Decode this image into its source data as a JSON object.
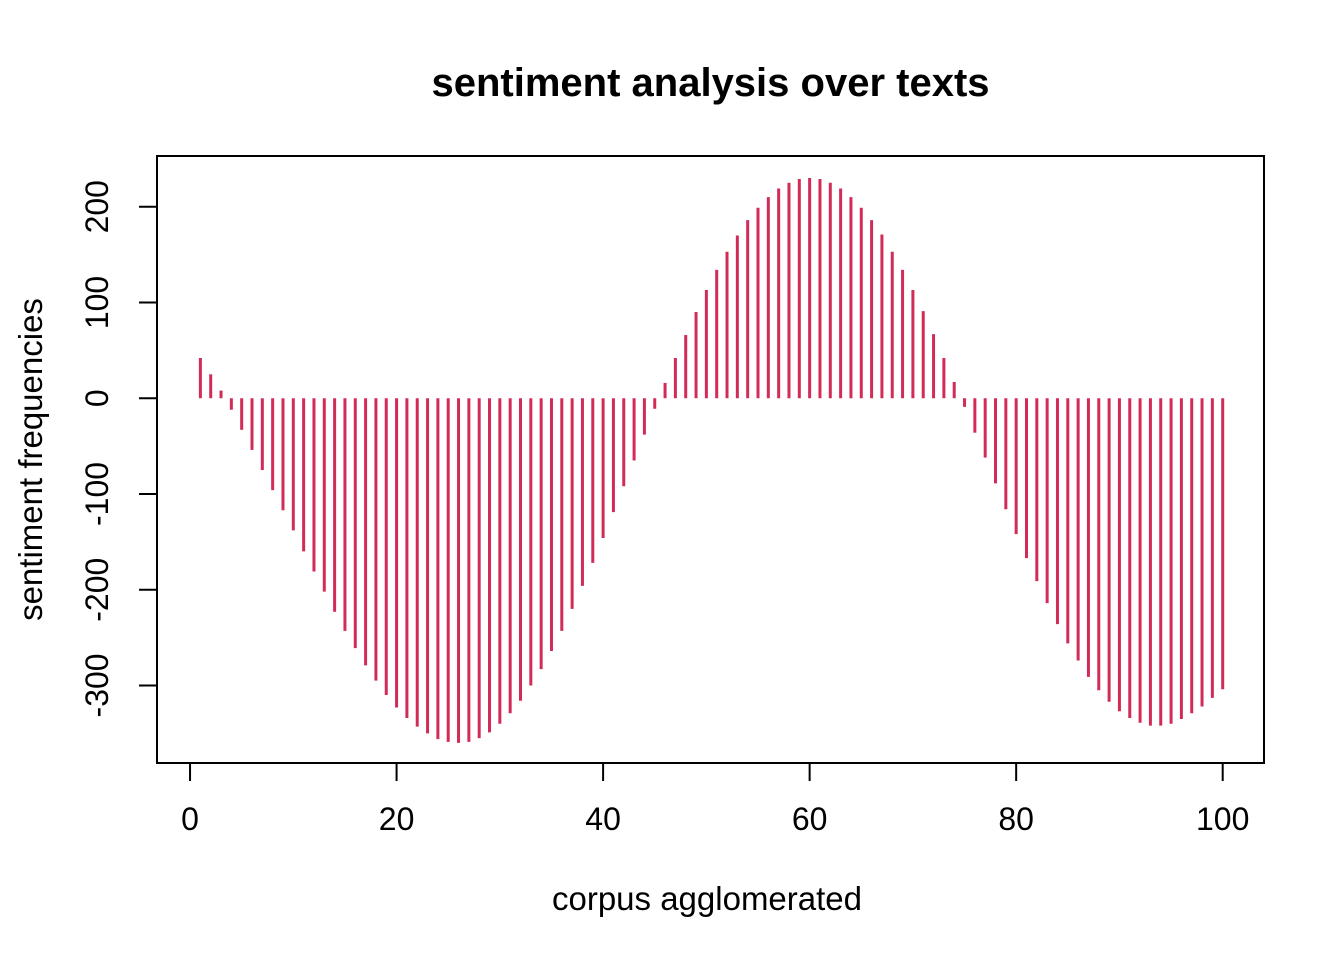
{
  "figure": {
    "background_color": "#ffffff",
    "axis_color": "#000000",
    "text_color": "#000000"
  },
  "chart_data": {
    "type": "bar",
    "variant": "vertical-line-stems (R plot type='h')",
    "title": "sentiment analysis over texts",
    "xlabel": "corpus agglomerated",
    "ylabel": "sentiment frequencies",
    "grid": false,
    "legend": null,
    "bar_color": "#D22B58",
    "axis_color": "#000000",
    "xlim": [
      -3.2,
      104.0
    ],
    "ylim": [
      -381,
      253
    ],
    "x_ticks": [
      0,
      20,
      40,
      60,
      80,
      100
    ],
    "x_tick_labels": [
      "0",
      "20",
      "40",
      "60",
      "80",
      "100"
    ],
    "y_ticks": [
      -300,
      -200,
      -100,
      0,
      100,
      200
    ],
    "y_tick_labels": [
      "-300",
      "-200",
      "-100",
      "0",
      "100",
      "200"
    ],
    "x": [
      1,
      2,
      3,
      4,
      5,
      6,
      7,
      8,
      9,
      10,
      11,
      12,
      13,
      14,
      15,
      16,
      17,
      18,
      19,
      20,
      21,
      22,
      23,
      24,
      25,
      26,
      27,
      28,
      29,
      30,
      31,
      32,
      33,
      34,
      35,
      36,
      37,
      38,
      39,
      40,
      41,
      42,
      43,
      44,
      45,
      46,
      47,
      48,
      49,
      50,
      51,
      52,
      53,
      54,
      55,
      56,
      57,
      58,
      59,
      60,
      61,
      62,
      63,
      64,
      65,
      66,
      67,
      68,
      69,
      70,
      71,
      72,
      73,
      74,
      75,
      76,
      77,
      78,
      79,
      80,
      81,
      82,
      83,
      84,
      85,
      86,
      87,
      88,
      89,
      90,
      91,
      92,
      93,
      94,
      95,
      96,
      97,
      98,
      99,
      100
    ],
    "values": [
      42,
      25,
      8,
      -12,
      -33,
      -54,
      -75,
      -96,
      -117,
      -138,
      -160,
      -181,
      -202,
      -223,
      -243,
      -261,
      -279,
      -295,
      -310,
      -323,
      -334,
      -343,
      -350,
      -356,
      -359,
      -360,
      -359,
      -355,
      -349,
      -340,
      -329,
      -316,
      -300,
      -283,
      -264,
      -243,
      -220,
      -196,
      -172,
      -146,
      -119,
      -92,
      -65,
      -38,
      -11,
      16,
      42,
      66,
      90,
      113,
      134,
      153,
      170,
      186,
      199,
      210,
      219,
      225,
      229,
      230,
      229,
      225,
      219,
      210,
      199,
      186,
      171,
      153,
      134,
      113,
      91,
      67,
      42,
      17,
      -9,
      -36,
      -62,
      -89,
      -116,
      -142,
      -167,
      -191,
      -214,
      -236,
      -256,
      -274,
      -291,
      -305,
      -317,
      -327,
      -334,
      -339,
      -342,
      -342,
      -340,
      -335,
      -329,
      -322,
      -313,
      -304
    ]
  }
}
